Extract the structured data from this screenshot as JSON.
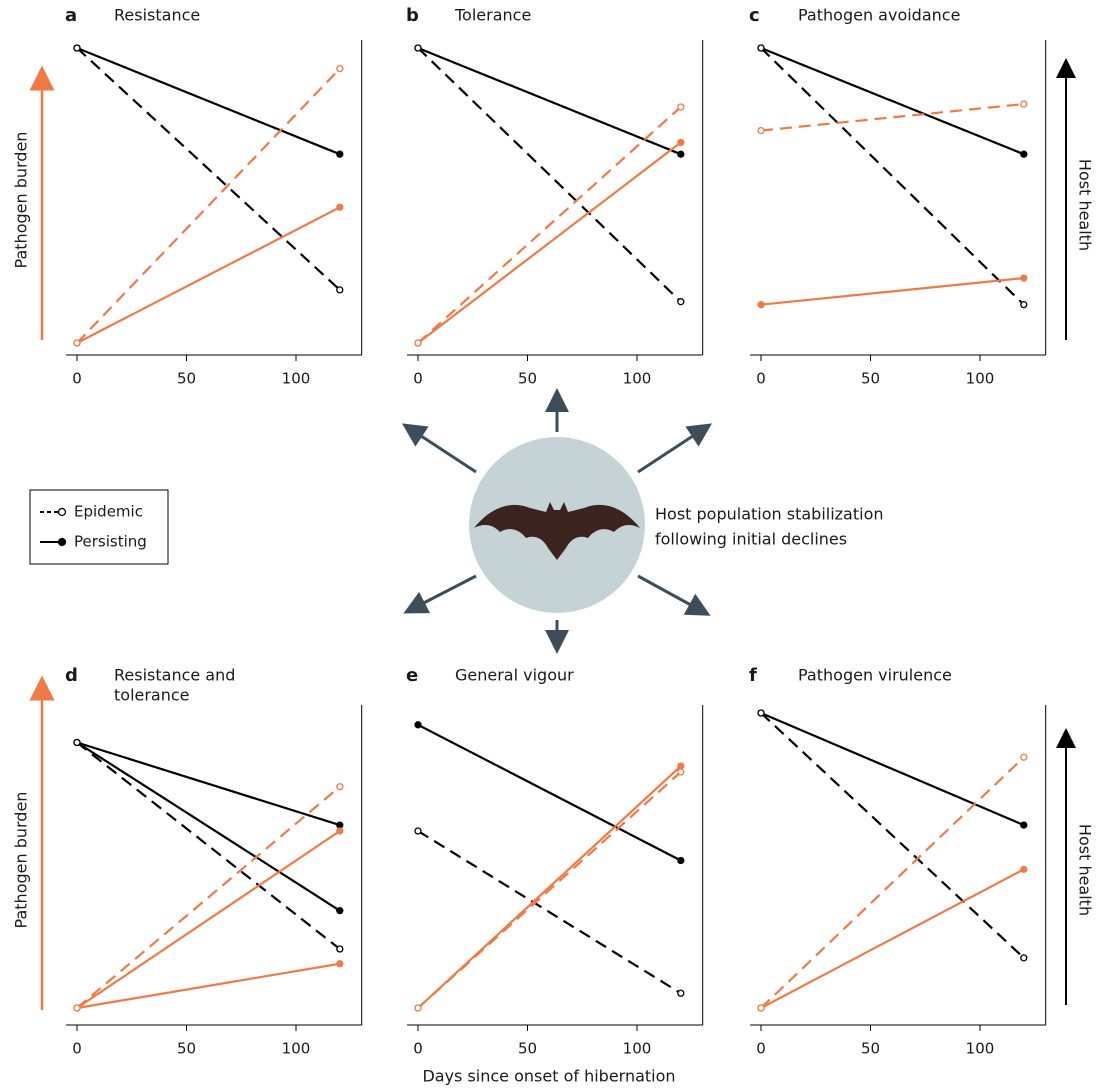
{
  "figure": {
    "y_label_left": "Pathogen burden",
    "y_label_right": "Host health",
    "x_label": "Days since onset of hibernation",
    "center_text": [
      "Host population stabilization",
      "following initial declines"
    ],
    "legend": [
      {
        "label": "Epidemic",
        "dash": true
      },
      {
        "label": "Persisting",
        "dash": false
      }
    ]
  },
  "chart_data": [
    {
      "type": "line",
      "label": "a",
      "title": [
        "Resistance"
      ],
      "x": [
        0,
        120
      ],
      "xlim": [
        -5,
        130
      ],
      "xticks": [
        0,
        50,
        100
      ],
      "ylim": [
        0,
        1
      ],
      "series": [
        {
          "color": "#000000",
          "dash": false,
          "values": [
            1,
            0.64
          ]
        },
        {
          "color": "#000000",
          "dash": true,
          "values": [
            1,
            0.18
          ]
        },
        {
          "color": "#ef7a45",
          "dash": false,
          "values": [
            0,
            0.46
          ]
        },
        {
          "color": "#ef7a45",
          "dash": true,
          "values": [
            0,
            0.93
          ]
        }
      ]
    },
    {
      "type": "line",
      "label": "b",
      "title": [
        "Tolerance"
      ],
      "x": [
        0,
        120
      ],
      "xlim": [
        -5,
        130
      ],
      "xticks": [
        0,
        50,
        100
      ],
      "ylim": [
        0,
        1
      ],
      "series": [
        {
          "color": "#000000",
          "dash": false,
          "values": [
            1,
            0.64
          ]
        },
        {
          "color": "#000000",
          "dash": true,
          "values": [
            1,
            0.14
          ]
        },
        {
          "color": "#ef7a45",
          "dash": false,
          "values": [
            0,
            0.68
          ]
        },
        {
          "color": "#ef7a45",
          "dash": true,
          "values": [
            0,
            0.8
          ]
        }
      ]
    },
    {
      "type": "line",
      "label": "c",
      "title": [
        "Pathogen avoidance"
      ],
      "x": [
        0,
        120
      ],
      "xlim": [
        -5,
        130
      ],
      "xticks": [
        0,
        50,
        100
      ],
      "ylim": [
        0,
        1
      ],
      "series": [
        {
          "color": "#000000",
          "dash": false,
          "values": [
            1,
            0.64
          ]
        },
        {
          "color": "#000000",
          "dash": true,
          "values": [
            1,
            0.13
          ]
        },
        {
          "color": "#ef7a45",
          "dash": false,
          "values": [
            0.13,
            0.22
          ]
        },
        {
          "color": "#ef7a45",
          "dash": true,
          "values": [
            0.72,
            0.81
          ]
        }
      ]
    },
    {
      "type": "line",
      "label": "d",
      "title": [
        "Resistance and",
        "tolerance"
      ],
      "x": [
        0,
        120
      ],
      "xlim": [
        -5,
        130
      ],
      "xticks": [
        0,
        50,
        100
      ],
      "ylim": [
        0,
        1
      ],
      "series": [
        {
          "color": "#000000",
          "dash": false,
          "values": [
            0.9,
            0.62
          ]
        },
        {
          "color": "#000000",
          "dash": false,
          "values": [
            0.9,
            0.33
          ]
        },
        {
          "color": "#000000",
          "dash": true,
          "values": [
            0.9,
            0.2
          ]
        },
        {
          "color": "#ef7a45",
          "dash": false,
          "values": [
            0,
            0.6
          ]
        },
        {
          "color": "#ef7a45",
          "dash": false,
          "values": [
            0,
            0.15
          ]
        },
        {
          "color": "#ef7a45",
          "dash": true,
          "values": [
            0,
            0.75
          ]
        }
      ]
    },
    {
      "type": "line",
      "label": "e",
      "title": [
        "General vigour"
      ],
      "x": [
        0,
        120
      ],
      "xlim": [
        -5,
        130
      ],
      "xticks": [
        0,
        50,
        100
      ],
      "ylim": [
        0,
        1
      ],
      "series": [
        {
          "color": "#000000",
          "dash": false,
          "values": [
            0.96,
            0.5
          ]
        },
        {
          "color": "#000000",
          "dash": true,
          "values": [
            0.6,
            0.05
          ]
        },
        {
          "color": "#ef7a45",
          "dash": false,
          "values": [
            0,
            0.82
          ]
        },
        {
          "color": "#ef7a45",
          "dash": true,
          "values": [
            0,
            0.8
          ]
        }
      ]
    },
    {
      "type": "line",
      "label": "f",
      "title": [
        "Pathogen virulence"
      ],
      "x": [
        0,
        120
      ],
      "xlim": [
        -5,
        130
      ],
      "xticks": [
        0,
        50,
        100
      ],
      "ylim": [
        0,
        1
      ],
      "series": [
        {
          "color": "#000000",
          "dash": false,
          "values": [
            1,
            0.62
          ]
        },
        {
          "color": "#000000",
          "dash": true,
          "values": [
            1,
            0.17
          ]
        },
        {
          "color": "#ef7a45",
          "dash": false,
          "values": [
            0,
            0.47
          ]
        },
        {
          "color": "#ef7a45",
          "dash": true,
          "values": [
            0,
            0.85
          ]
        }
      ]
    }
  ]
}
